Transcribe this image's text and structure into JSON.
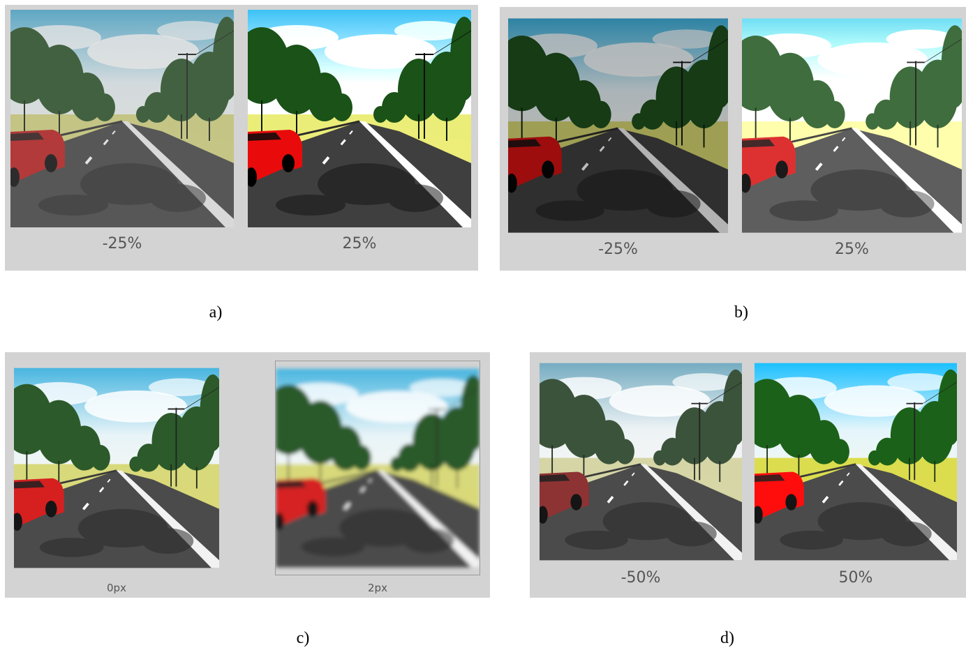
{
  "figure_panels": [
    {
      "letter": "a)",
      "images": [
        {
          "caption": "-25%",
          "variant": "contrast-low"
        },
        {
          "caption": "25%",
          "variant": "contrast-high"
        }
      ]
    },
    {
      "letter": "b)",
      "images": [
        {
          "caption": "-25%",
          "variant": "brightness-low"
        },
        {
          "caption": "25%",
          "variant": "brightness-high"
        }
      ]
    },
    {
      "letter": "c)",
      "images": [
        {
          "caption": "0px",
          "variant": "normal"
        },
        {
          "caption": "2px",
          "variant": "blur"
        }
      ]
    },
    {
      "letter": "d)",
      "images": [
        {
          "caption": "-50%",
          "variant": "saturation-low"
        },
        {
          "caption": "50%",
          "variant": "saturation-high"
        }
      ]
    }
  ],
  "colors": {
    "panel_background": "#d3d3d3",
    "caption_text": "#555555",
    "car": "#d62020",
    "road": "#4a4a4a",
    "sky": "#6fc3e6",
    "trees": "#2c5a2a",
    "grass": "#d7d97a"
  }
}
